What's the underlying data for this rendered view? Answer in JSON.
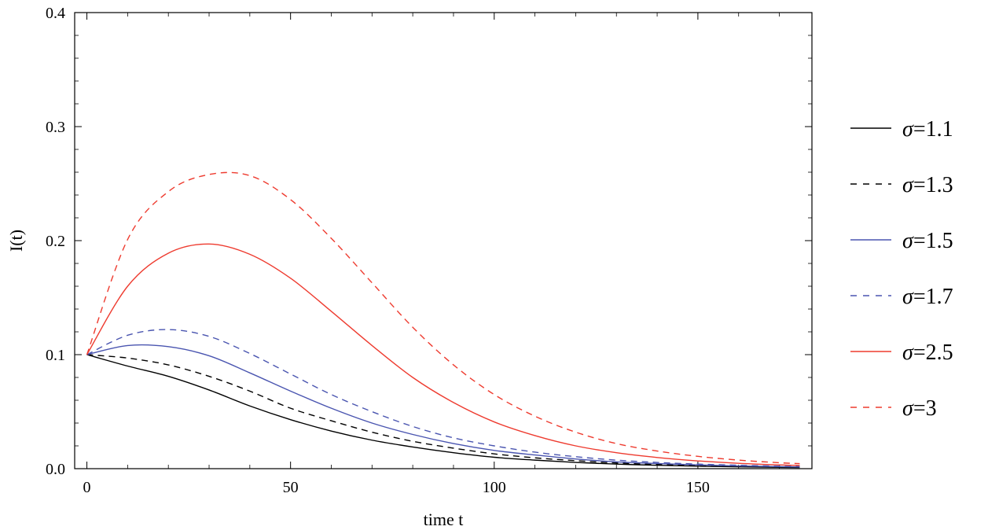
{
  "chart_data": {
    "type": "line",
    "xlabel": "time t",
    "ylabel": "I(t)",
    "xlim": [
      -3,
      178
    ],
    "ylim": [
      0,
      0.4
    ],
    "xticks": [
      0,
      50,
      100,
      150
    ],
    "xtick_labels": [
      "0",
      "50",
      "100",
      "150"
    ],
    "yticks": [
      0.0,
      0.1,
      0.2,
      0.3,
      0.4
    ],
    "ytick_labels": [
      "0.0",
      "0.1",
      "0.2",
      "0.3",
      "0.4"
    ],
    "grid": false,
    "legend_position": "right",
    "x": [
      0,
      10,
      20,
      30,
      40,
      50,
      60,
      70,
      80,
      90,
      100,
      110,
      120,
      130,
      140,
      150,
      160,
      170,
      175
    ],
    "series": [
      {
        "name": "σ=1.1",
        "symbol": "σ",
        "value_text": "=1.1",
        "color": "#000000",
        "dash": "solid",
        "values": [
          0.1,
          0.09,
          0.081,
          0.069,
          0.055,
          0.043,
          0.033,
          0.025,
          0.019,
          0.014,
          0.01,
          0.0075,
          0.0055,
          0.004,
          0.003,
          0.0022,
          0.0016,
          0.0012,
          0.001
        ]
      },
      {
        "name": "σ=1.3",
        "symbol": "σ",
        "value_text": "=1.3",
        "color": "#000000",
        "dash": "dashed",
        "values": [
          0.1,
          0.097,
          0.091,
          0.081,
          0.068,
          0.053,
          0.042,
          0.032,
          0.024,
          0.018,
          0.013,
          0.0095,
          0.007,
          0.005,
          0.0037,
          0.0027,
          0.002,
          0.0015,
          0.0013
        ]
      },
      {
        "name": "σ=1.5",
        "symbol": "σ",
        "value_text": "=1.5",
        "color": "#4a55b0",
        "dash": "solid",
        "values": [
          0.1,
          0.108,
          0.107,
          0.099,
          0.084,
          0.068,
          0.053,
          0.04,
          0.03,
          0.022,
          0.016,
          0.012,
          0.0085,
          0.006,
          0.0045,
          0.0033,
          0.0024,
          0.0018,
          0.0015
        ]
      },
      {
        "name": "σ=1.7",
        "symbol": "σ",
        "value_text": "=1.7",
        "color": "#4a55b0",
        "dash": "dashed",
        "values": [
          0.1,
          0.117,
          0.122,
          0.116,
          0.101,
          0.083,
          0.065,
          0.05,
          0.037,
          0.027,
          0.02,
          0.0145,
          0.0105,
          0.0075,
          0.0055,
          0.004,
          0.003,
          0.0022,
          0.0019
        ]
      },
      {
        "name": "σ=2.5",
        "symbol": "σ",
        "value_text": "=2.5",
        "color": "#ee3b2f",
        "dash": "solid",
        "values": [
          0.1,
          0.16,
          0.189,
          0.197,
          0.188,
          0.167,
          0.138,
          0.108,
          0.08,
          0.058,
          0.041,
          0.029,
          0.02,
          0.014,
          0.0098,
          0.0068,
          0.0047,
          0.0033,
          0.0028
        ]
      },
      {
        "name": "σ=3",
        "symbol": "σ",
        "value_text": "=3",
        "color": "#ee3b2f",
        "dash": "dashed",
        "values": [
          0.1,
          0.201,
          0.243,
          0.258,
          0.257,
          0.236,
          0.202,
          0.163,
          0.124,
          0.091,
          0.065,
          0.046,
          0.032,
          0.022,
          0.0155,
          0.0108,
          0.0075,
          0.0052,
          0.0044
        ]
      }
    ]
  }
}
